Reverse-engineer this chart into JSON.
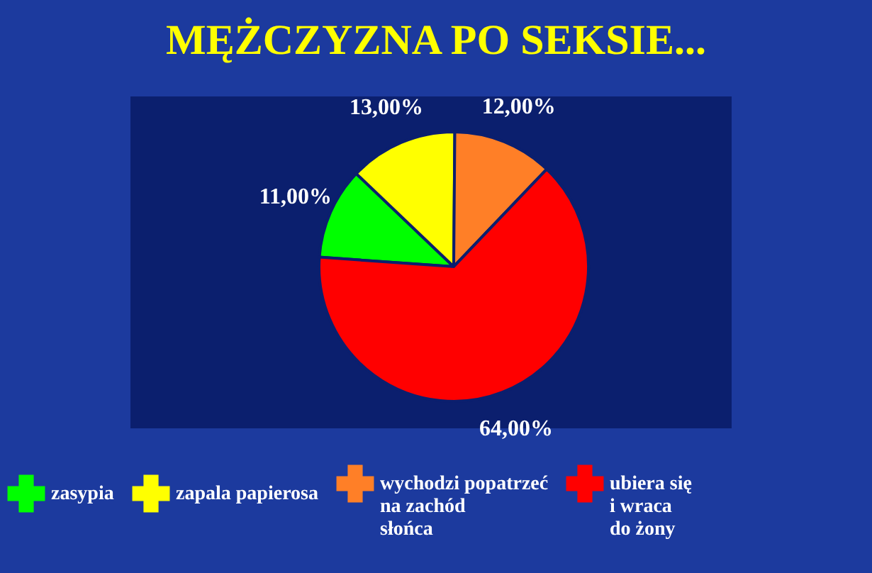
{
  "chart_data": {
    "type": "pie",
    "title": "MĘŻCZYZNA PO SEKSIE...",
    "categories": [
      "zasypia",
      "zapala papierosa",
      "wychodzi popatrzeć na zachód słońca",
      "ubiera się i wraca do żony"
    ],
    "values": [
      11,
      13,
      12,
      64
    ],
    "colors": [
      "#00ff00",
      "#ffff00",
      "#ff7f27",
      "#ff0000"
    ],
    "value_labels": [
      "11,00%",
      "13,00%",
      "12,00%",
      "64,00%"
    ],
    "legend": "bottom"
  }
}
